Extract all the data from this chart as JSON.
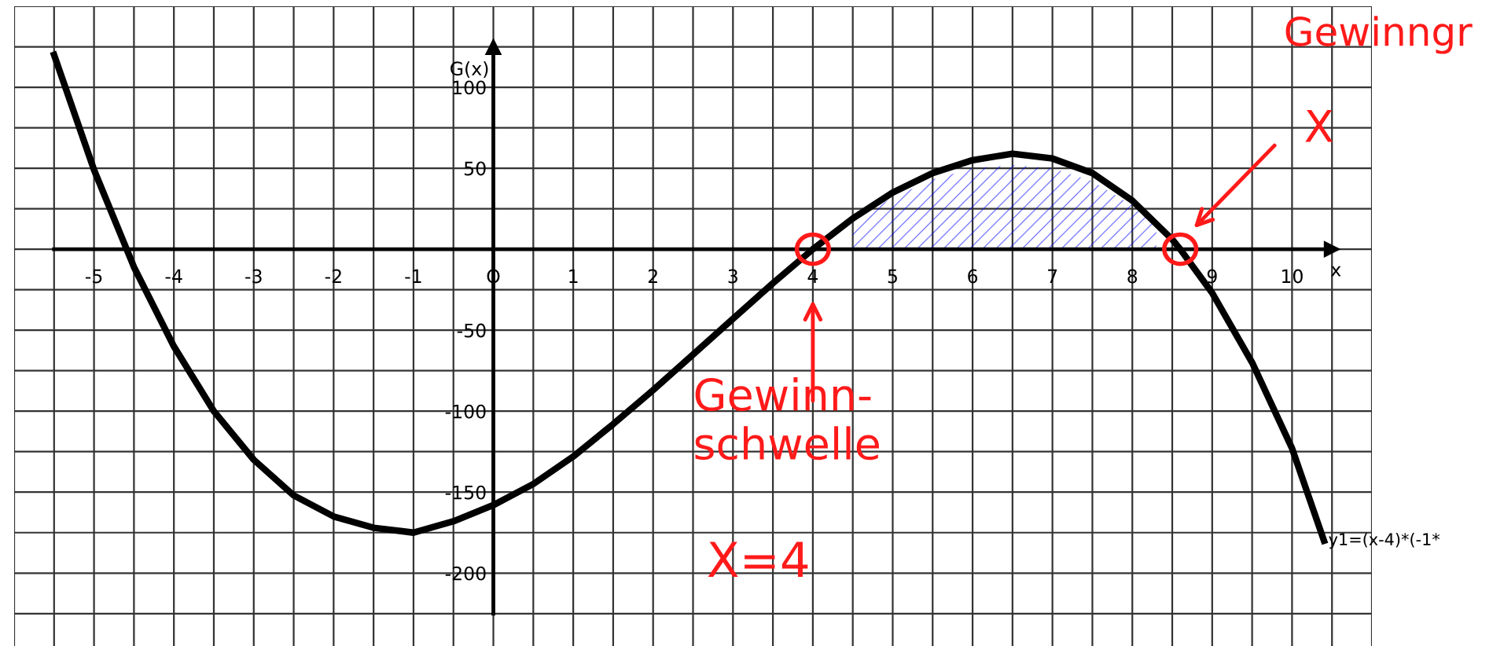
{
  "chart_data": {
    "type": "line",
    "xlabel": "x",
    "ylabel": "G(x)",
    "xlim": [
      -6,
      11
    ],
    "ylim": [
      -245,
      150
    ],
    "xticks": [
      {
        "value": -6,
        "label": null
      },
      {
        "value": -5.5,
        "label": null
      },
      -5,
      {
        "value": -4.5,
        "label": null
      },
      -4,
      {
        "value": -3.5,
        "label": null
      },
      -3,
      {
        "value": -2.5,
        "label": null
      },
      -2,
      {
        "value": -1.5,
        "label": null
      },
      -1,
      {
        "value": -0.5,
        "label": null
      },
      {
        "value": 0,
        "label": "O"
      },
      {
        "value": 0.5,
        "label": null
      },
      1,
      {
        "value": 1.5,
        "label": null
      },
      2,
      {
        "value": 2.5,
        "label": null
      },
      3,
      {
        "value": 3.5,
        "label": null
      },
      4,
      {
        "value": 4.5,
        "label": null
      },
      5,
      {
        "value": 5.5,
        "label": null
      },
      6,
      {
        "value": 6.5,
        "label": null
      },
      7,
      {
        "value": 7.5,
        "label": null
      },
      8,
      {
        "value": 8.5,
        "label": null
      },
      9,
      {
        "value": 9.5,
        "label": null
      },
      10,
      {
        "value": 10.5,
        "label": null
      },
      {
        "value": 11,
        "label": null
      }
    ],
    "yticks": [
      {
        "value": -225,
        "label": null
      },
      -200,
      {
        "value": -175,
        "label": null
      },
      -150,
      {
        "value": -125,
        "label": null
      },
      -100,
      {
        "value": -75,
        "label": null
      },
      -50,
      {
        "value": -25,
        "label": null
      },
      {
        "value": 0,
        "label": null
      },
      {
        "value": 25,
        "label": null
      },
      50,
      {
        "value": 75,
        "label": null
      },
      100,
      {
        "value": 125,
        "label": null
      },
      {
        "value": 150,
        "label": null
      }
    ],
    "grid": true,
    "series": [
      {
        "color": "#000000",
        "x": [
          -5.5,
          -5,
          -4.5,
          -4,
          -3.5,
          -3,
          -2.5,
          -2,
          -1.5,
          -1,
          -0.5,
          0,
          0.5,
          1,
          1.5,
          2,
          2.5,
          3,
          3.5,
          4,
          4.5,
          5,
          5.5,
          6,
          6.5,
          7,
          7.5,
          8,
          8.5,
          8.6,
          9,
          9.5,
          10,
          10.4
        ],
        "values": [
          120,
          49,
          -11,
          -60,
          -100,
          -130,
          -152,
          -165,
          -172,
          -175,
          -168,
          -158,
          -145,
          -128,
          -108,
          -87,
          -65,
          -43,
          -21,
          0,
          19,
          35,
          47,
          55,
          59,
          56,
          47,
          30,
          6,
          0,
          -27,
          -70,
          -123,
          -180
        ]
      },
      {
        "type": "area",
        "color": "#0000ff",
        "x": [
          4.5,
          5,
          5.5,
          6,
          6.5,
          7,
          7.5,
          8,
          8.3
        ],
        "values": [
          17,
          32,
          43,
          50,
          52,
          50,
          42,
          27,
          15
        ]
      }
    ],
    "annotations": [
      "Gewinn-\nschwelle",
      "X=4",
      "Gewinngr",
      "X",
      {
        "text": "y1=(x-4)*(-1*",
        "x": 10.4,
        "y": -180
      }
    ]
  }
}
